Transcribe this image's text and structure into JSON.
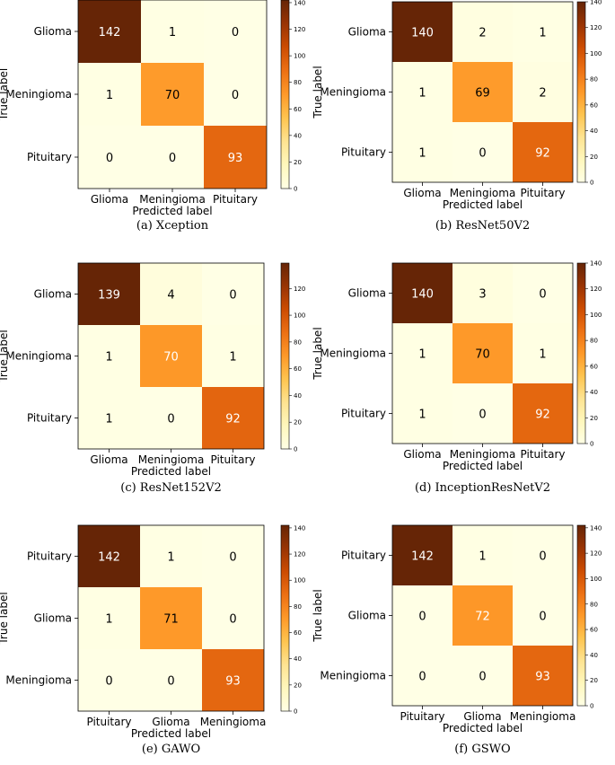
{
  "chart_data": [
    {
      "type": "heatmap",
      "caption": "(a) Xception",
      "xlabel": "Predicted label",
      "ylabel": "True label",
      "x_tick_labels": [
        "Glioma",
        "Meningioma",
        "Pituitary"
      ],
      "y_tick_labels": [
        "Glioma",
        "Meningioma",
        "Pituitary"
      ],
      "values": [
        [
          142,
          1,
          0
        ],
        [
          1,
          70,
          0
        ],
        [
          0,
          0,
          93
        ]
      ],
      "colorbar_ticks": [
        "0",
        "20",
        "40",
        "60",
        "80",
        "100",
        "120",
        "140"
      ],
      "colorbar_range": [
        0,
        142
      ]
    },
    {
      "type": "heatmap",
      "caption": "(b) ResNet50V2",
      "xlabel": "Predicted label",
      "ylabel": "True label",
      "x_tick_labels": [
        "Glioma",
        "Meningioma",
        "Pituitary"
      ],
      "y_tick_labels": [
        "Glioma",
        "Meningioma",
        "Pituitary"
      ],
      "values": [
        [
          140,
          2,
          1
        ],
        [
          1,
          69,
          2
        ],
        [
          1,
          0,
          92
        ]
      ],
      "colorbar_ticks": [
        "0",
        "20",
        "40",
        "60",
        "80",
        "100",
        "120",
        "140"
      ],
      "colorbar_range": [
        0,
        140
      ]
    },
    {
      "type": "heatmap",
      "caption": "(c) ResNet152V2",
      "xlabel": "Predicted label",
      "ylabel": "True label",
      "x_tick_labels": [
        "Glioma",
        "Meningioma",
        "Pituitary"
      ],
      "y_tick_labels": [
        "Glioma",
        "Meningioma",
        "Pituitary"
      ],
      "values": [
        [
          139,
          4,
          0
        ],
        [
          1,
          70,
          1
        ],
        [
          1,
          0,
          92
        ]
      ],
      "colorbar_ticks": [
        "0",
        "20",
        "40",
        "60",
        "80",
        "100",
        "120"
      ],
      "colorbar_range": [
        0,
        139
      ]
    },
    {
      "type": "heatmap",
      "caption": "(d) InceptionResNetV2",
      "xlabel": "Predicted label",
      "ylabel": "True label",
      "x_tick_labels": [
        "Glioma",
        "Meningioma",
        "Pituitary"
      ],
      "y_tick_labels": [
        "Glioma",
        "Meningioma",
        "Pituitary"
      ],
      "values": [
        [
          140,
          3,
          0
        ],
        [
          1,
          70,
          1
        ],
        [
          1,
          0,
          92
        ]
      ],
      "colorbar_ticks": [
        "0",
        "20",
        "40",
        "60",
        "80",
        "100",
        "120",
        "140"
      ],
      "colorbar_range": [
        0,
        140
      ]
    },
    {
      "type": "heatmap",
      "caption": "(e) GAWO",
      "xlabel": "Predicted label",
      "ylabel": "True label",
      "x_tick_labels": [
        "Pituitary",
        "Glioma",
        "Meningioma"
      ],
      "y_tick_labels": [
        "Pituitary",
        "Glioma",
        "Meningioma"
      ],
      "values": [
        [
          142,
          1,
          0
        ],
        [
          1,
          71,
          0
        ],
        [
          0,
          0,
          93
        ]
      ],
      "colorbar_ticks": [
        "0",
        "20",
        "40",
        "60",
        "80",
        "100",
        "120",
        "140"
      ],
      "colorbar_range": [
        0,
        142
      ]
    },
    {
      "type": "heatmap",
      "caption": "(f) GSWO",
      "xlabel": "Predicted label",
      "ylabel": "True label",
      "x_tick_labels": [
        "Pituitary",
        "Glioma",
        "Meningioma"
      ],
      "y_tick_labels": [
        "Pituitary",
        "Glioma",
        "Meningioma"
      ],
      "values": [
        [
          142,
          1,
          0
        ],
        [
          0,
          72,
          0
        ],
        [
          0,
          0,
          93
        ]
      ],
      "colorbar_ticks": [
        "0",
        "20",
        "40",
        "60",
        "80",
        "100",
        "120",
        "140"
      ],
      "colorbar_range": [
        0,
        142
      ]
    }
  ]
}
